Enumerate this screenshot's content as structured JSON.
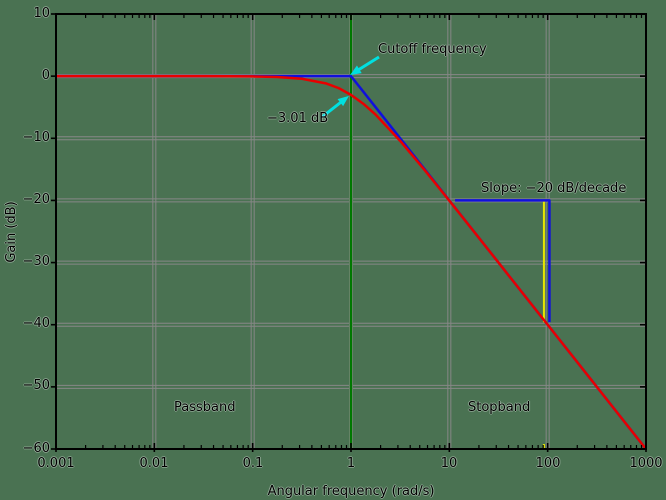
{
  "figure": {
    "background_color": "#4a7252",
    "frame_color": "#000000",
    "grid_color": "#878787"
  },
  "chart_data": {
    "type": "line",
    "title": "",
    "xlabel": "Angular frequency (rad/s)",
    "ylabel": "Gain (dB)",
    "x_scale": "log",
    "xlim_exp": [
      -3,
      3
    ],
    "ylim": [
      -60,
      10
    ],
    "grid": true,
    "x_ticks": [
      {
        "label": "0.001",
        "exp": -3
      },
      {
        "label": "0.01",
        "exp": -2
      },
      {
        "label": "0.1",
        "exp": -1
      },
      {
        "label": "1",
        "exp": 0
      },
      {
        "label": "10",
        "exp": 1
      },
      {
        "label": "100",
        "exp": 2
      },
      {
        "label": "1000",
        "exp": 3
      }
    ],
    "y_ticks": [
      {
        "label": "10",
        "db": 10
      },
      {
        "label": "0",
        "db": 0
      },
      {
        "label": "−10",
        "db": -10
      },
      {
        "label": "−20",
        "db": -20
      },
      {
        "label": "−30",
        "db": -30
      },
      {
        "label": "−40",
        "db": -40
      },
      {
        "label": "−50",
        "db": -50
      },
      {
        "label": "−60",
        "db": -60
      }
    ],
    "series": [
      {
        "name": "actual-gain-response",
        "color": "#e80000",
        "points": [
          [
            -3,
            0
          ],
          [
            -2.5,
            0
          ],
          [
            -2,
            0
          ],
          [
            -1.5,
            -0.004
          ],
          [
            -1.25,
            -0.014
          ],
          [
            -1,
            -0.043
          ],
          [
            -0.75,
            -0.134
          ],
          [
            -0.5,
            -0.414
          ],
          [
            -0.25,
            -1.19
          ],
          [
            -0.125,
            -1.93
          ],
          [
            0,
            -3.01
          ],
          [
            0.125,
            -4.44
          ],
          [
            0.25,
            -6.19
          ],
          [
            0.5,
            -10.41
          ],
          [
            0.75,
            -15.13
          ],
          [
            1,
            -20.04
          ],
          [
            1.25,
            -25.01
          ],
          [
            1.5,
            -30.0
          ],
          [
            2,
            -40.0
          ],
          [
            2.5,
            -50.0
          ],
          [
            3,
            -60.0
          ]
        ]
      },
      {
        "name": "straight-line-asymptote",
        "color": "#1010dd",
        "points": [
          [
            -3,
            0
          ],
          [
            0,
            0
          ],
          [
            3,
            -60
          ]
        ]
      }
    ],
    "cutoff_line": {
      "color": "#007800",
      "x_exp": 0
    },
    "slope_marker": {
      "blue_color": "#1010dd",
      "yellow_color": "#e6e600",
      "blue_polyline": [
        [
          1.058,
          -20
        ],
        [
          2.018,
          -20
        ],
        [
          2.018,
          -39.6
        ]
      ],
      "yellow_polyline": [
        [
          1.962,
          -20
        ],
        [
          1.962,
          -39.6
        ]
      ],
      "yellow_axis_tick": [
        [
          1.962,
          -59.2
        ],
        [
          1.962,
          -60
        ]
      ]
    },
    "arrow_color": "#00e0e0",
    "annotations": {
      "cutoff": {
        "text": "Cutoff frequency",
        "points_to": {
          "x_exp": 0,
          "db": 0
        }
      },
      "minus3db": {
        "text": "−3.01 dB",
        "points_to": {
          "x_exp": 0,
          "db": -3.01
        }
      },
      "slope": {
        "text": "Slope: −20 dB/decade"
      },
      "passband": {
        "text": "Passband"
      },
      "stopband": {
        "text": "Stopband"
      }
    }
  }
}
